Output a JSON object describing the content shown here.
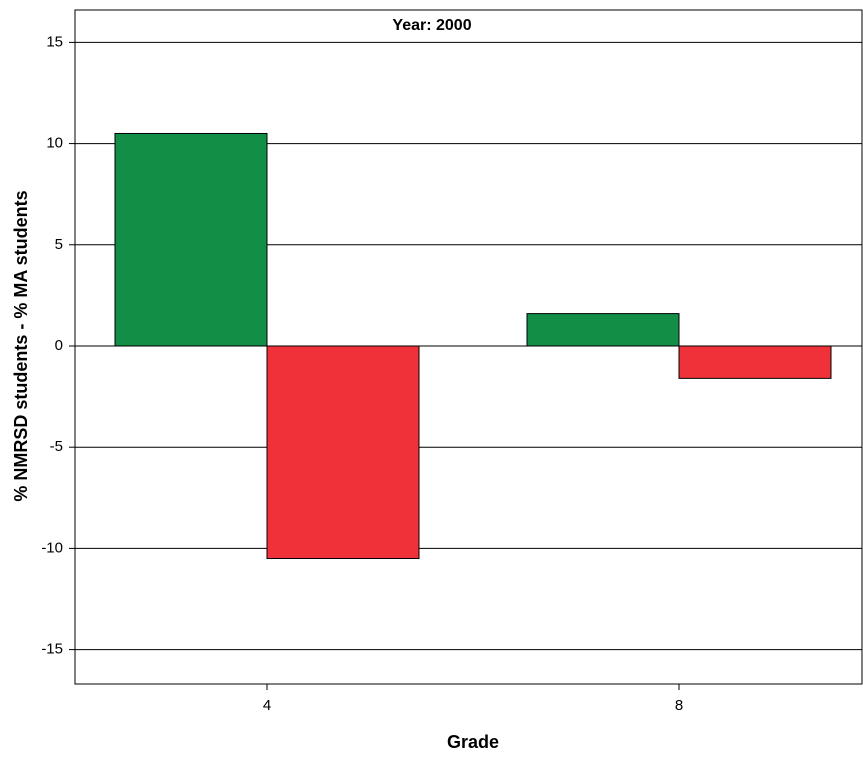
{
  "chart_data": {
    "type": "bar",
    "title": "Year: 2000",
    "x_label": "Grade",
    "y_label": "% NMRSD students - % MA students",
    "categories": [
      "4",
      "8"
    ],
    "series": [
      {
        "color": "#138e47",
        "values": [
          10.5,
          1.6
        ]
      },
      {
        "color": "#ef323a",
        "values": [
          -10.5,
          -1.6
        ]
      }
    ],
    "ylim": [
      -16.7,
      16.6
    ],
    "yticks": [
      -15,
      -10,
      -5,
      0,
      5,
      10,
      15
    ],
    "grid": true
  }
}
